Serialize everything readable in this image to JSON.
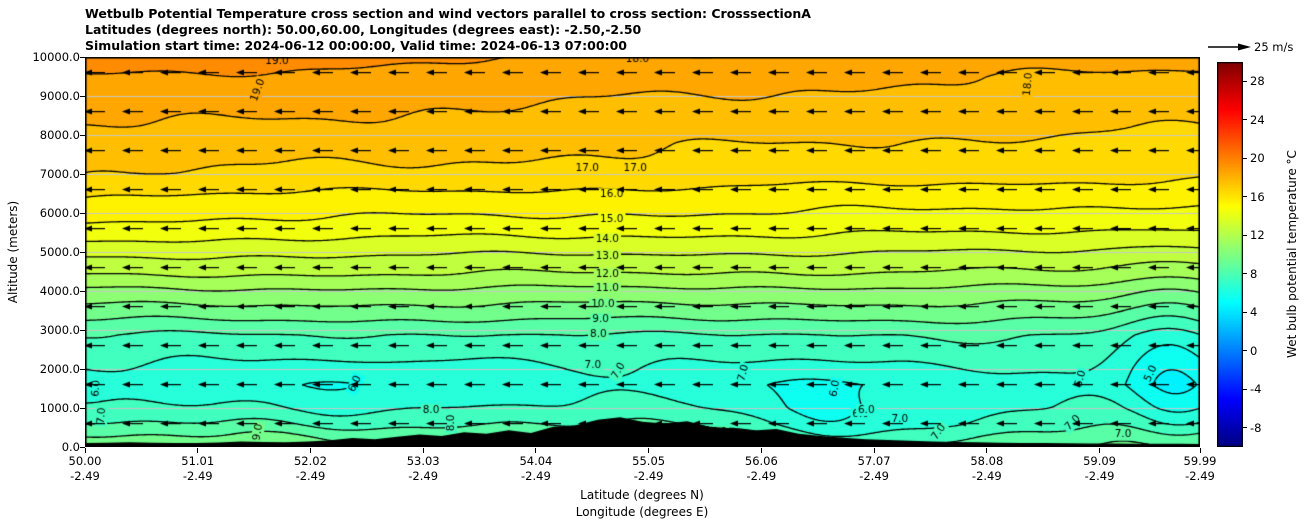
{
  "chart_data": {
    "type": "contour",
    "variant": "filled contour cross-section with parallel wind vectors (quiver)",
    "colormap": "jet",
    "title_lines": [
      "Wetbulb Potential Temperature cross section and wind vectors parallel to cross section: CrosssectionA",
      "Latitudes (degrees north): 50.00,60.00, Longitudes (degrees east): -2.50,-2.50",
      "Simulation start time: 2024-06-12 00:00:00, Valid time: 2024-06-13 07:00:00"
    ],
    "xlabel": [
      "Latitude (degrees N)",
      "Longitude (degrees E)"
    ],
    "ylabel": "Altitude (meters)",
    "x_range_lat": [
      50.0,
      59.99
    ],
    "x_lon_constant": "-2.49",
    "y_range_m": [
      0,
      10000
    ],
    "grid": true,
    "x_ticks": [
      {
        "lat": "50.00",
        "lon": "-2.49"
      },
      {
        "lat": "51.01",
        "lon": "-2.49"
      },
      {
        "lat": "52.02",
        "lon": "-2.49"
      },
      {
        "lat": "53.03",
        "lon": "-2.49"
      },
      {
        "lat": "54.04",
        "lon": "-2.49"
      },
      {
        "lat": "55.05",
        "lon": "-2.49"
      },
      {
        "lat": "56.06",
        "lon": "-2.49"
      },
      {
        "lat": "57.07",
        "lon": "-2.49"
      },
      {
        "lat": "58.08",
        "lon": "-2.49"
      },
      {
        "lat": "59.09",
        "lon": "-2.49"
      },
      {
        "lat": "59.99",
        "lon": "-2.49"
      }
    ],
    "y_ticks": [
      "0.0",
      "1000.0",
      "2000.0",
      "3000.0",
      "4000.0",
      "5000.0",
      "6000.0",
      "7000.0",
      "8000.0",
      "9000.0",
      "10000.0"
    ],
    "contour_levels": [
      4,
      5,
      6,
      7,
      8,
      9,
      10,
      11,
      12,
      13,
      14,
      15,
      16,
      17,
      18,
      19
    ],
    "contour_labels": [
      {
        "v": 19,
        "lat": 51.72,
        "alt": 9900,
        "rot": 0
      },
      {
        "v": 19,
        "lat": 51.55,
        "alt": 9150,
        "rot": -70
      },
      {
        "v": 18,
        "lat": 54.95,
        "alt": 9950,
        "rot": 0
      },
      {
        "v": 18,
        "lat": 58.45,
        "alt": 9300,
        "rot": -85
      },
      {
        "v": 17,
        "lat": 54.5,
        "alt": 7150,
        "rot": 0
      },
      {
        "v": 17,
        "lat": 54.93,
        "alt": 7150,
        "rot": 0
      },
      {
        "v": 16,
        "lat": 54.72,
        "alt": 6480,
        "rot": 0
      },
      {
        "v": 15,
        "lat": 54.72,
        "alt": 5850,
        "rot": 0
      },
      {
        "v": 14,
        "lat": 54.68,
        "alt": 5330,
        "rot": 0
      },
      {
        "v": 13,
        "lat": 54.68,
        "alt": 4900,
        "rot": 0
      },
      {
        "v": 12,
        "lat": 54.68,
        "alt": 4440,
        "rot": 0
      },
      {
        "v": 11,
        "lat": 54.68,
        "alt": 4060,
        "rot": 0
      },
      {
        "v": 10,
        "lat": 54.64,
        "alt": 3660,
        "rot": 0
      },
      {
        "v": 9,
        "lat": 54.62,
        "alt": 3270,
        "rot": 0
      },
      {
        "v": 8,
        "lat": 54.6,
        "alt": 2890,
        "rot": 0
      },
      {
        "v": 7,
        "lat": 54.55,
        "alt": 2100,
        "rot": 0
      },
      {
        "v": 7,
        "lat": 54.78,
        "alt": 1950,
        "rot": -60
      },
      {
        "v": 7,
        "lat": 55.9,
        "alt": 1900,
        "rot": -75
      },
      {
        "v": 6,
        "lat": 52.42,
        "alt": 1620,
        "rot": -65
      },
      {
        "v": 6,
        "lat": 56.72,
        "alt": 1500,
        "rot": -80
      },
      {
        "v": 6,
        "lat": 56.95,
        "alt": 850,
        "rot": 0
      },
      {
        "v": 5,
        "lat": 58.92,
        "alt": 1750,
        "rot": -75
      },
      {
        "v": 5,
        "lat": 59.55,
        "alt": 1880,
        "rot": -65
      },
      {
        "v": 9,
        "lat": 51.55,
        "alt": 380,
        "rot": -80
      },
      {
        "v": 8,
        "lat": 53.28,
        "alt": 620,
        "rot": -90
      },
      {
        "v": 8,
        "lat": 53.1,
        "alt": 950,
        "rot": 0
      },
      {
        "v": 7,
        "lat": 55.68,
        "alt": 380,
        "rot": 0
      },
      {
        "v": 7,
        "lat": 57.3,
        "alt": 700,
        "rot": 0
      },
      {
        "v": 6,
        "lat": 57.0,
        "alt": 950,
        "rot": 0
      },
      {
        "v": 7,
        "lat": 57.65,
        "alt": 380,
        "rot": -55
      },
      {
        "v": 7,
        "lat": 58.85,
        "alt": 620,
        "rot": -45
      },
      {
        "v": 7,
        "lat": 59.3,
        "alt": 320,
        "rot": 0
      },
      {
        "v": 6,
        "lat": 50.1,
        "alt": 1500,
        "rot": -85
      },
      {
        "v": 7,
        "lat": 50.15,
        "alt": 800,
        "rot": -85
      }
    ],
    "colorbar": {
      "label": "Wet bulb potential temperature °C",
      "ticks": [
        -8,
        -4,
        0,
        4,
        8,
        12,
        16,
        20,
        24,
        28
      ],
      "range": [
        -10,
        30
      ],
      "position": "right"
    },
    "quiver_key": {
      "label": "25 m/s"
    },
    "wind": {
      "direction": "left",
      "rows_alt_m": [
        9600,
        8600,
        7600,
        6600,
        5600,
        4600,
        3600,
        2600,
        1600,
        600
      ],
      "n_cols": 30
    },
    "profile_alt_theta": [
      [
        0,
        9.6
      ],
      [
        250,
        9.0
      ],
      [
        600,
        8.0
      ],
      [
        1000,
        7.2
      ],
      [
        1600,
        6.5
      ],
      [
        2050,
        7.0
      ],
      [
        2870,
        8.0
      ],
      [
        3250,
        9.0
      ],
      [
        3640,
        10.0
      ],
      [
        4050,
        11.0
      ],
      [
        4400,
        12.0
      ],
      [
        4870,
        13.0
      ],
      [
        5300,
        14.0
      ],
      [
        5800,
        15.0
      ],
      [
        6450,
        16.0
      ],
      [
        7000,
        17.0
      ],
      [
        7800,
        17.6
      ],
      [
        8200,
        18.0
      ],
      [
        9500,
        19.0
      ],
      [
        10000,
        19.6
      ]
    ],
    "tilt_aloft": -1.3,
    "wiggle": {
      "amp0": 0.2,
      "amp1": 0.55,
      "decay_m": 1500
    },
    "anomalies": [
      {
        "u": 0.975,
        "su": 0.045,
        "alt": 1800,
        "sa": 2600,
        "dt": -1.7
      },
      {
        "u": 0.25,
        "su": 0.05,
        "alt": 1600,
        "sa": 800,
        "dt": -0.5
      },
      {
        "u": 0.37,
        "su": 0.045,
        "alt": 1900,
        "sa": 900,
        "dt": -0.55
      },
      {
        "u": 0.67,
        "su": 0.06,
        "alt": 1300,
        "sa": 900,
        "dt": -0.55
      },
      {
        "u": 0.7,
        "su": 0.14,
        "alt": 300,
        "sa": 900,
        "dt": -1.4
      },
      {
        "u": 0.08,
        "su": 0.05,
        "alt": 1500,
        "sa": 900,
        "dt": -0.35
      }
    ],
    "terrain_heights_m": [
      100,
      110,
      120,
      110,
      100,
      105,
      115,
      140,
      130,
      120,
      140,
      170,
      230,
      200,
      260,
      320,
      280,
      380,
      340,
      430,
      360,
      520,
      560,
      700,
      760,
      650,
      600,
      660,
      520,
      480,
      420,
      460,
      340,
      280,
      240,
      200,
      180,
      160,
      140,
      130,
      120,
      110,
      105,
      100,
      95,
      90,
      88,
      86,
      84,
      82,
      80
    ]
  },
  "colors": {
    "background": "#ffffff",
    "contour_line": "#000000",
    "terrain": "#000000",
    "grid_line": "#c8c8c8",
    "axis": "#000000",
    "arrow": "#000000"
  }
}
